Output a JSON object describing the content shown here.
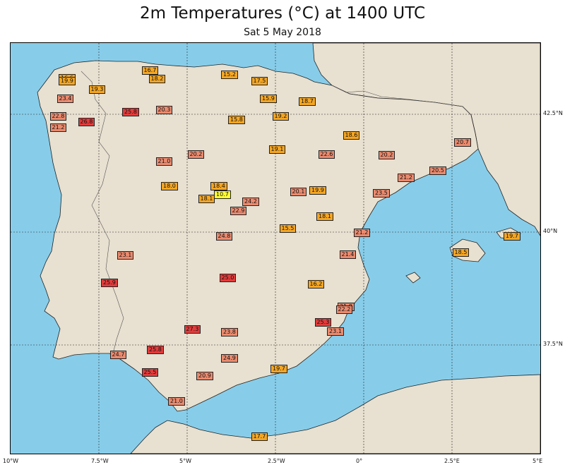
{
  "title": "2m Temperatures (°C) at 1400 UTC",
  "subtitle": "Sat 5 May 2018",
  "colors": {
    "sea": "#87cdea",
    "land": "#e8e0d0",
    "warm": "#f5a623",
    "hot": "#ea8a6e",
    "very_hot": "#e23b3b",
    "cool": "#ffff33"
  },
  "axes": {
    "lon_ticks": [
      {
        "label": "10°W",
        "lon": -10
      },
      {
        "label": "7.5°W",
        "lon": -7.5
      },
      {
        "label": "5°W",
        "lon": -5
      },
      {
        "label": "2.5°W",
        "lon": -2.5
      },
      {
        "label": "0°",
        "lon": 0
      },
      {
        "label": "2.5°E",
        "lon": 2.5
      },
      {
        "label": "5°E",
        "lon": 5
      }
    ],
    "lat_ticks": [
      {
        "label": "42.5°N",
        "lat": 42.5
      },
      {
        "label": "40°N",
        "lat": 40
      },
      {
        "label": "37.5°N",
        "lat": 37.5
      }
    ]
  },
  "stations": [
    {
      "value": "16.6",
      "lon": -8.4,
      "lat": 43.37
    },
    {
      "value": "19.9",
      "lon": -8.4,
      "lat": 43.3
    },
    {
      "value": "16.7",
      "lon": -6.05,
      "lat": 43.55
    },
    {
      "value": "18.2",
      "lon": -5.85,
      "lat": 43.35
    },
    {
      "value": "15.2",
      "lon": -3.8,
      "lat": 43.45
    },
    {
      "value": "17.5",
      "lon": -2.95,
      "lat": 43.3
    },
    {
      "value": "19.3",
      "lon": -7.55,
      "lat": 43.1
    },
    {
      "value": "23.4",
      "lon": -8.45,
      "lat": 42.88
    },
    {
      "value": "15.9",
      "lon": -2.7,
      "lat": 42.87
    },
    {
      "value": "18.7",
      "lon": -1.6,
      "lat": 42.8
    },
    {
      "value": "25.8",
      "lon": -6.6,
      "lat": 42.55
    },
    {
      "value": "20.3",
      "lon": -5.65,
      "lat": 42.6
    },
    {
      "value": "19.2",
      "lon": -2.35,
      "lat": 42.45
    },
    {
      "value": "15.8",
      "lon": -3.6,
      "lat": 42.38
    },
    {
      "value": "22.8",
      "lon": -8.65,
      "lat": 42.45
    },
    {
      "value": "26.8",
      "lon": -7.85,
      "lat": 42.33
    },
    {
      "value": "21.2",
      "lon": -8.65,
      "lat": 42.22
    },
    {
      "value": "18.6",
      "lon": -0.35,
      "lat": 42.05
    },
    {
      "value": "20.7",
      "lon": 2.8,
      "lat": 41.9
    },
    {
      "value": "19.1",
      "lon": -2.45,
      "lat": 41.75
    },
    {
      "value": "22.6",
      "lon": -1.05,
      "lat": 41.65
    },
    {
      "value": "20.2",
      "lon": 0.65,
      "lat": 41.63
    },
    {
      "value": "20.2",
      "lon": -4.75,
      "lat": 41.65
    },
    {
      "value": "21.0",
      "lon": -5.65,
      "lat": 41.5
    },
    {
      "value": "20.5",
      "lon": 2.1,
      "lat": 41.3
    },
    {
      "value": "21.2",
      "lon": 1.2,
      "lat": 41.15
    },
    {
      "value": "18.0",
      "lon": -5.5,
      "lat": 40.97
    },
    {
      "value": "18.4",
      "lon": -4.1,
      "lat": 40.97
    },
    {
      "value": "10.7",
      "lon": -4.0,
      "lat": 40.8
    },
    {
      "value": "18.1",
      "lon": -4.45,
      "lat": 40.7
    },
    {
      "value": "24.2",
      "lon": -3.2,
      "lat": 40.65
    },
    {
      "value": "22.9",
      "lon": -3.55,
      "lat": 40.45
    },
    {
      "value": "20.1",
      "lon": -1.85,
      "lat": 40.85
    },
    {
      "value": "19.9",
      "lon": -1.3,
      "lat": 40.88
    },
    {
      "value": "23.5",
      "lon": 0.5,
      "lat": 40.83
    },
    {
      "value": "18.1",
      "lon": -1.1,
      "lat": 40.33
    },
    {
      "value": "15.5",
      "lon": -2.15,
      "lat": 40.07
    },
    {
      "value": "21.2",
      "lon": -0.05,
      "lat": 39.98
    },
    {
      "value": "24.8",
      "lon": -3.95,
      "lat": 39.9
    },
    {
      "value": "19.7",
      "lon": 4.2,
      "lat": 39.9
    },
    {
      "value": "18.5",
      "lon": 2.75,
      "lat": 39.55
    },
    {
      "value": "23.1",
      "lon": -6.75,
      "lat": 39.48
    },
    {
      "value": "21.4",
      "lon": -0.45,
      "lat": 39.5
    },
    {
      "value": "25.9",
      "lon": -7.2,
      "lat": 38.88
    },
    {
      "value": "25.0",
      "lon": -3.85,
      "lat": 38.98
    },
    {
      "value": "16.2",
      "lon": -1.35,
      "lat": 38.85
    },
    {
      "value": "21.8",
      "lon": -0.5,
      "lat": 38.35
    },
    {
      "value": "22.2",
      "lon": -0.55,
      "lat": 38.28
    },
    {
      "value": "25.3",
      "lon": -1.15,
      "lat": 38.0
    },
    {
      "value": "23.1",
      "lon": -0.8,
      "lat": 37.8
    },
    {
      "value": "27.3",
      "lon": -4.85,
      "lat": 37.85
    },
    {
      "value": "23.8",
      "lon": -3.8,
      "lat": 37.78
    },
    {
      "value": "25.8",
      "lon": -5.9,
      "lat": 37.38
    },
    {
      "value": "24.7",
      "lon": -6.95,
      "lat": 37.27
    },
    {
      "value": "24.9",
      "lon": -3.8,
      "lat": 37.18
    },
    {
      "value": "19.7",
      "lon": -2.4,
      "lat": 36.93
    },
    {
      "value": "25.5",
      "lon": -6.05,
      "lat": 36.85
    },
    {
      "value": "20.9",
      "lon": -4.5,
      "lat": 36.75
    },
    {
      "value": "21.0",
      "lon": -5.3,
      "lat": 36.15
    },
    {
      "value": "17.7",
      "lon": -2.95,
      "lat": 35.3
    }
  ]
}
